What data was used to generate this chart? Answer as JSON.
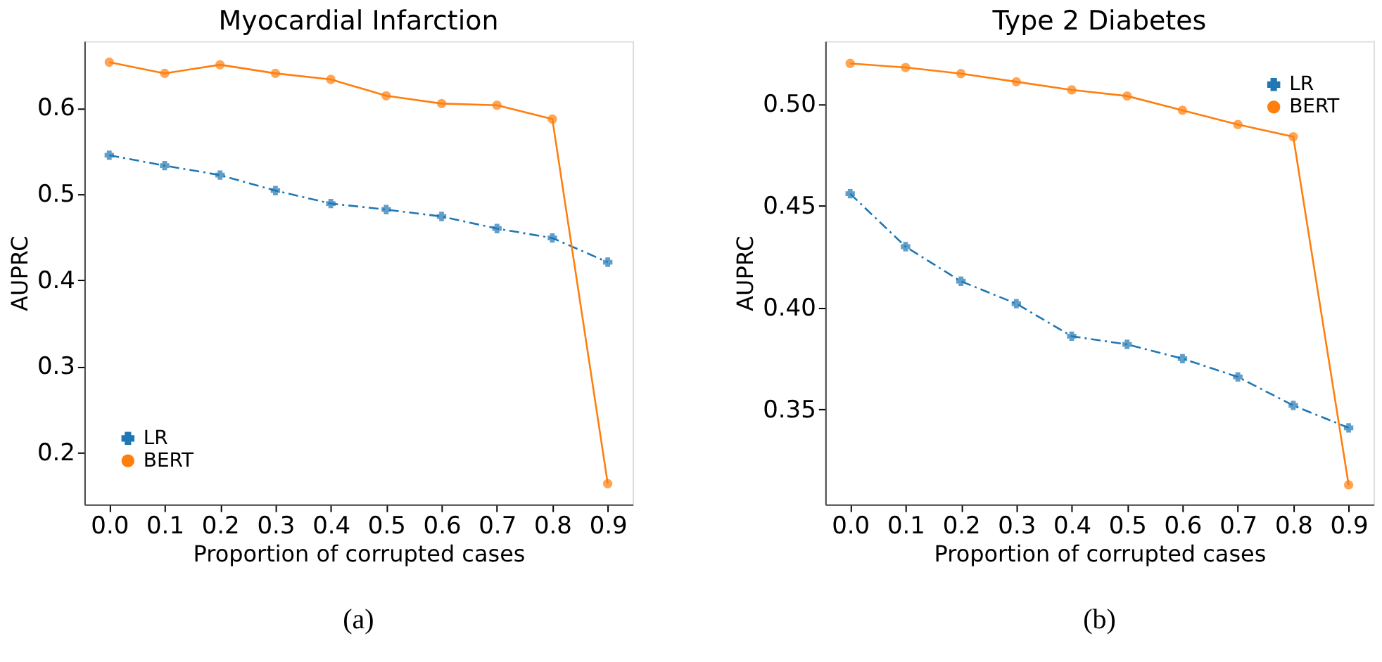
{
  "chart_data": [
    {
      "type": "line",
      "title": "Myocardial Infarction",
      "xlabel": "Proportion of corrupted cases",
      "ylabel": "AUPRC",
      "x": [
        0.0,
        0.1,
        0.2,
        0.3,
        0.4,
        0.5,
        0.6,
        0.7,
        0.8,
        0.9
      ],
      "xlim": [
        -0.045,
        0.945
      ],
      "xticks": [
        {
          "value": 0,
          "label": "0.0"
        },
        0.1,
        0.2,
        0.3,
        0.4,
        0.5,
        0.6,
        0.7,
        0.8,
        0.9
      ],
      "ylim": [
        0.14,
        0.6775
      ],
      "yticks": [
        0.2,
        0.3,
        0.4,
        0.5,
        0.6
      ],
      "grid": false,
      "legend": "bottom left",
      "annotations": [
        "(a)"
      ],
      "series": [
        {
          "name": "LR",
          "color": "#1f77b4",
          "marker": "cross",
          "line_style": "dashed",
          "values": [
            0.545,
            0.533,
            0.522,
            0.504,
            0.489,
            0.482,
            0.474,
            0.46,
            0.449,
            0.421
          ]
        },
        {
          "name": "BERT",
          "color": "#ff7f0e",
          "marker": "circle",
          "line_style": "solid",
          "values": [
            0.653,
            0.64,
            0.65,
            0.64,
            0.633,
            0.614,
            0.605,
            0.603,
            0.587,
            0.164
          ]
        }
      ]
    },
    {
      "type": "line",
      "title": "Type 2 Diabetes",
      "xlabel": "Proportion of corrupted cases",
      "ylabel": "AUPRC",
      "x": [
        0.0,
        0.1,
        0.2,
        0.3,
        0.4,
        0.5,
        0.6,
        0.7,
        0.8,
        0.9
      ],
      "xlim": [
        -0.045,
        0.945
      ],
      "xticks": [
        {
          "value": 0,
          "label": "0.0"
        },
        0.1,
        0.2,
        0.3,
        0.4,
        0.5,
        0.6,
        0.7,
        0.8,
        0.9
      ],
      "ylim": [
        0.3034,
        0.531
      ],
      "yticks": [
        0.35,
        {
          "value": 0.4,
          "label": "0.40"
        },
        0.45,
        {
          "value": 0.5,
          "label": "0.50"
        }
      ],
      "grid": false,
      "legend": "top right",
      "annotations": [
        "(b)"
      ],
      "series": [
        {
          "name": "LR",
          "color": "#1f77b4",
          "marker": "cross",
          "line_style": "dashed",
          "values": [
            0.456,
            0.43,
            0.413,
            0.402,
            0.386,
            0.382,
            0.375,
            0.366,
            0.352,
            0.341
          ]
        },
        {
          "name": "BERT",
          "color": "#ff7f0e",
          "marker": "circle",
          "line_style": "solid",
          "values": [
            0.52,
            0.518,
            0.515,
            0.511,
            0.507,
            0.504,
            0.497,
            0.49,
            0.484,
            0.313
          ]
        }
      ]
    }
  ]
}
